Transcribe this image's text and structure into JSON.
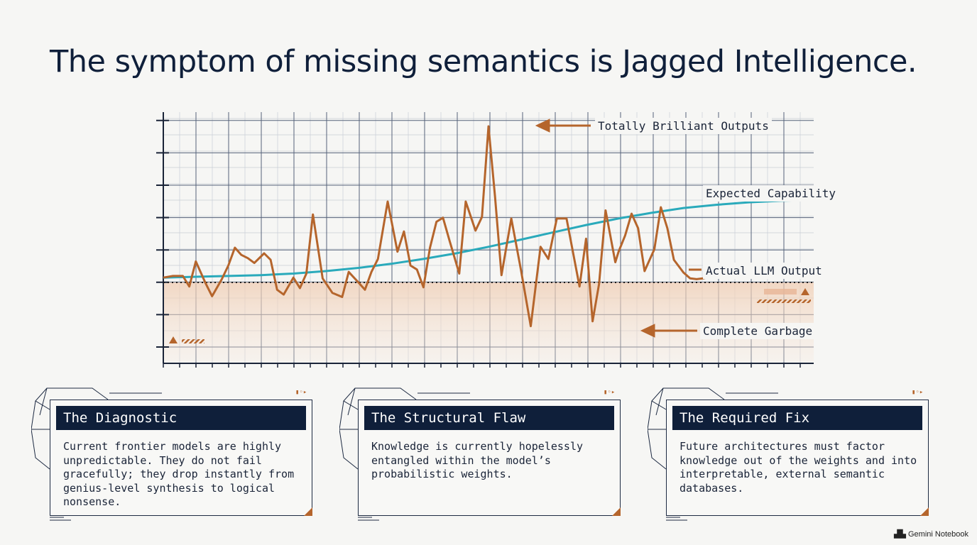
{
  "title": "The symptom of missing semantics is Jagged Intelligence.",
  "chart_data": {
    "type": "line",
    "title": "",
    "xlabel": "",
    "ylabel": "",
    "annotations": {
      "top": "Totally Brilliant Outputs",
      "expected": "Expected Capability",
      "actual": "Actual LLM Output",
      "bottom": "Complete Garbage"
    },
    "series": [
      {
        "name": "Expected Capability",
        "color": "#2aaabb",
        "x": [
          0,
          0.05,
          0.1,
          0.15,
          0.2,
          0.25,
          0.3,
          0.35,
          0.4,
          0.45,
          0.5,
          0.55,
          0.6,
          0.65,
          0.7,
          0.75,
          0.8,
          0.85,
          0.9,
          0.95,
          1.0
        ],
        "y": [
          0.06,
          0.07,
          0.08,
          0.09,
          0.11,
          0.14,
          0.18,
          0.23,
          0.29,
          0.36,
          0.44,
          0.53,
          0.62,
          0.71,
          0.79,
          0.86,
          0.92,
          0.96,
          0.99,
          1.01,
          1.02
        ]
      },
      {
        "name": "Actual LLM Output",
        "color": "#b5652c",
        "x": [
          0,
          0.015,
          0.03,
          0.04,
          0.05,
          0.065,
          0.075,
          0.09,
          0.1,
          0.11,
          0.12,
          0.13,
          0.14,
          0.155,
          0.165,
          0.175,
          0.185,
          0.2,
          0.21,
          0.22,
          0.23,
          0.245,
          0.26,
          0.275,
          0.285,
          0.3,
          0.31,
          0.32,
          0.33,
          0.345,
          0.36,
          0.37,
          0.38,
          0.39,
          0.4,
          0.41,
          0.42,
          0.43,
          0.44,
          0.455,
          0.465,
          0.48,
          0.49,
          0.5,
          0.51,
          0.52,
          0.535,
          0.55,
          0.565,
          0.58,
          0.592,
          0.605,
          0.62,
          0.64,
          0.65,
          0.66,
          0.67,
          0.68,
          0.695,
          0.7,
          0.71,
          0.72,
          0.73,
          0.74,
          0.755,
          0.765,
          0.775,
          0.785,
          0.8,
          0.81,
          0.82,
          0.83,
          0.84,
          0.855,
          0.865,
          0.875,
          0.885,
          0.895,
          0.905,
          0.92,
          0.93,
          0.945,
          0.958,
          0.973,
          0.988
        ],
        "y": [
          0.06,
          0.08,
          0.08,
          -0.05,
          0.26,
          -0.01,
          -0.17,
          0.04,
          0.21,
          0.43,
          0.34,
          0.3,
          0.24,
          0.36,
          0.28,
          -0.09,
          -0.15,
          0.06,
          -0.07,
          0.11,
          0.84,
          0.05,
          -0.13,
          -0.18,
          0.13,
          0.0,
          -0.09,
          0.13,
          0.29,
          1.0,
          0.38,
          0.63,
          0.21,
          0.16,
          -0.06,
          0.43,
          0.75,
          0.8,
          0.52,
          0.11,
          1.0,
          0.64,
          0.81,
          1.93,
          1.06,
          0.09,
          0.79,
          0.15,
          -0.54,
          0.44,
          0.29,
          0.79,
          0.79,
          -0.05,
          0.54,
          -0.48,
          -0.02,
          0.89,
          0.25,
          0.38,
          0.58,
          0.85,
          0.67,
          0.14,
          0.41,
          0.93,
          0.67,
          0.28,
          0.12,
          0.05,
          0.04,
          0.05,
          0.07,
          0.06,
          0.06,
          0.06,
          0.06,
          0.06,
          0.06,
          0.06,
          0.06,
          0.06,
          0.06,
          0.06,
          0.06
        ]
      }
    ],
    "baseline": 0.0,
    "grid": true
  },
  "cards": [
    {
      "heading": "The Diagnostic",
      "text": "Current frontier models are highly unpredictable. They do not fail gracefully; they drop instantly from genius-level synthesis to logical nonsense."
    },
    {
      "heading": "The Structural Flaw",
      "text": "Knowledge is currently hopelessly entangled within the model’s probabilistic weights."
    },
    {
      "heading": "The Required Fix",
      "text": "Future architectures must factor knowledge out of the weights and into interpretable, external semantic databases."
    }
  ],
  "brand": "Gemini Notebook",
  "colors": {
    "navy": "#0f1f3a",
    "orange": "#b5652c",
    "teal": "#2aaabb",
    "band": "#f3dccb"
  }
}
